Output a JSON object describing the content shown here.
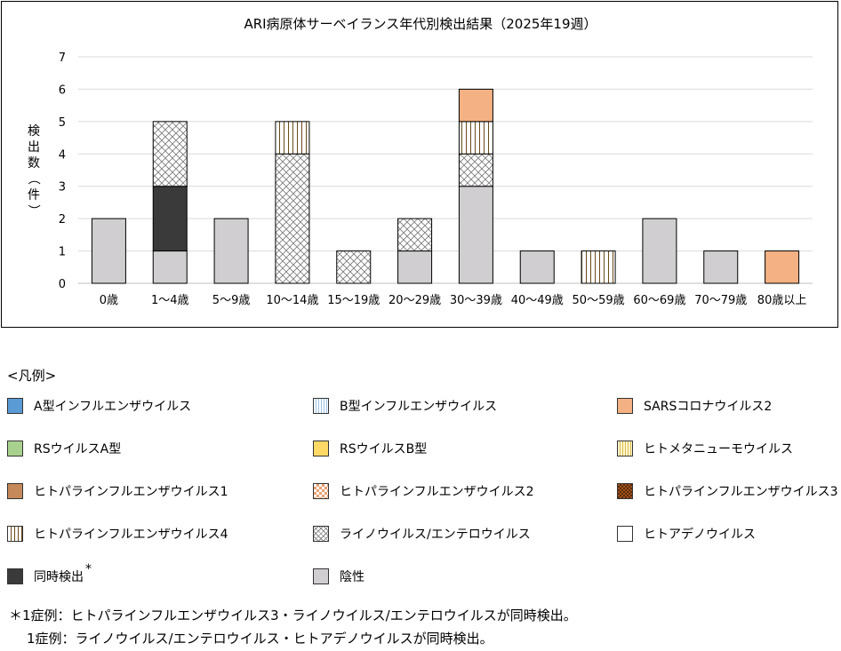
{
  "chart_data": {
    "type": "bar",
    "stacked": true,
    "title": "ARI病原体サーベイランス年代別検出結果（2025年19週）",
    "ylabel": "検出数（件）",
    "ylim": [
      0,
      7
    ],
    "yticks": [
      0,
      1,
      2,
      3,
      4,
      5,
      6,
      7
    ],
    "grid": true,
    "categories": [
      "0歳",
      "1～4歳",
      "5～9歳",
      "10～14歳",
      "15～19歳",
      "20～29歳",
      "30～39歳",
      "40～49歳",
      "50～59歳",
      "60～69歳",
      "70～79歳",
      "80歳以上"
    ],
    "series": [
      {
        "name": "陰性",
        "key": "negative",
        "values": [
          2,
          1,
          2,
          0,
          0,
          1,
          3,
          1,
          0,
          2,
          1,
          0
        ]
      },
      {
        "name": "同時検出",
        "key": "coinfection",
        "values": [
          0,
          2,
          0,
          0,
          0,
          0,
          0,
          0,
          0,
          0,
          0,
          0
        ]
      },
      {
        "name": "ライノウイルス/エンテロウイルス",
        "key": "rhino",
        "values": [
          0,
          2,
          0,
          4,
          1,
          1,
          1,
          0,
          0,
          0,
          0,
          0
        ]
      },
      {
        "name": "ヒトパラインフルエンザウイルス4",
        "key": "hpiv4",
        "values": [
          0,
          0,
          0,
          1,
          0,
          0,
          1,
          0,
          1,
          0,
          0,
          0
        ]
      },
      {
        "name": "SARSコロナウイルス2",
        "key": "sars",
        "values": [
          0,
          0,
          0,
          0,
          0,
          0,
          1,
          0,
          0,
          0,
          0,
          1
        ]
      }
    ]
  },
  "legend": {
    "heading": "<凡例>",
    "items": [
      {
        "label": "A型インフルエンザウイルス",
        "pattern": "fluA",
        "color": "#5b9bd5"
      },
      {
        "label": "B型インフルエンザウイルス",
        "pattern": "fluB",
        "color": "#bdd7ee"
      },
      {
        "label": "SARSコロナウイルス2",
        "pattern": "sars",
        "color": "#f4b183"
      },
      {
        "label": "RSウイルスA型",
        "pattern": "rsvA",
        "color": "#a9d18e"
      },
      {
        "label": "RSウイルスB型",
        "pattern": "rsvB",
        "color": "#ffd966"
      },
      {
        "label": "ヒトメタニューモウイルス",
        "pattern": "hmpv",
        "color": "#ffe699"
      },
      {
        "label": "ヒトパラインフルエンザウイルス1",
        "pattern": "hpiv1",
        "color": "#c55a11"
      },
      {
        "label": "ヒトパラインフルエンザウイルス2",
        "pattern": "hpiv2",
        "color": "#f4b183"
      },
      {
        "label": "ヒトパラインフルエンザウイルス3",
        "pattern": "hpiv3",
        "color": "#843c0c"
      },
      {
        "label": "ヒトパラインフルエンザウイルス4",
        "pattern": "hpiv4",
        "color": "#7f6000"
      },
      {
        "label": "ライノウイルス/エンテロウイルス",
        "pattern": "rhino",
        "color": "#808080"
      },
      {
        "label": "ヒトアデノウイルス",
        "pattern": "adeno",
        "color": "#ffffff"
      },
      {
        "label": "同時検出",
        "pattern": "coinfection",
        "color": "#3a3a3a",
        "mark": "*"
      },
      {
        "label": "陰性",
        "pattern": "negative",
        "color": "#d0ced0"
      }
    ]
  },
  "notes": {
    "line1": "＊1症例：ヒトパラインフルエンザウイルス3・ライノウイルス/エンテロウイルスが同時検出。",
    "line2": "1症例：ライノウイルス/エンテロウイルス・ヒトアデノウイルスが同時検出。"
  }
}
